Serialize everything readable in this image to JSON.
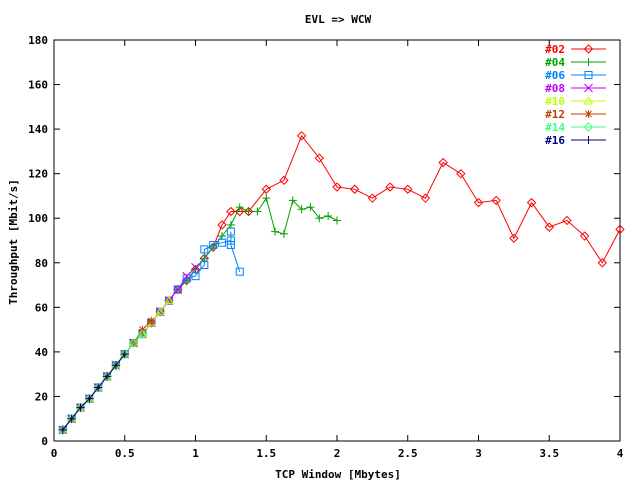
{
  "chart_data": {
    "type": "line",
    "title": "EVL => WCW",
    "xlabel": "TCP Window [Mbytes]",
    "ylabel": "Throughput [Mbit/s]",
    "xlim": [
      0,
      4
    ],
    "ylim": [
      0,
      180
    ],
    "xticks": [
      0,
      0.5,
      1,
      1.5,
      2,
      2.5,
      3,
      3.5,
      4
    ],
    "yticks": [
      0,
      20,
      40,
      60,
      80,
      100,
      120,
      140,
      160,
      180
    ],
    "xtick_labels": [
      "0",
      "0.5",
      "1",
      "1.5",
      "2",
      "2.5",
      "3",
      "3.5",
      "4"
    ],
    "ytick_labels": [
      "0",
      "20",
      "40",
      "60",
      "80",
      "100",
      "120",
      "140",
      "160",
      "180"
    ],
    "grid": false,
    "legend_position": "top-right",
    "series": [
      {
        "name": "#02",
        "color": "#ff0000",
        "marker": "diamond",
        "x": [
          0.0625,
          0.125,
          0.1875,
          0.25,
          0.3125,
          0.375,
          0.4375,
          0.5,
          0.5625,
          0.625,
          0.6875,
          0.75,
          0.8125,
          0.875,
          0.9375,
          1.0,
          1.0625,
          1.125,
          1.1875,
          1.25,
          1.3125,
          1.375,
          1.5,
          1.625,
          1.75,
          1.875,
          2.0,
          2.125,
          2.25,
          2.375,
          2.5,
          2.625,
          2.75,
          2.875,
          3.0,
          3.125,
          3.25,
          3.375,
          3.5,
          3.625,
          3.75,
          3.875,
          4.0
        ],
        "y": [
          5,
          10,
          15,
          19,
          24,
          29,
          34,
          39,
          44,
          48,
          53,
          58,
          63,
          68,
          72,
          77,
          82,
          87,
          97,
          103,
          103,
          103,
          113,
          117,
          137,
          127,
          114,
          113,
          109,
          114,
          113,
          109,
          125,
          120,
          107,
          108,
          91,
          107,
          96,
          99,
          92,
          80,
          95
        ]
      },
      {
        "name": "#04",
        "color": "#00a000",
        "marker": "plus",
        "x": [
          0.0625,
          0.125,
          0.1875,
          0.25,
          0.3125,
          0.375,
          0.4375,
          0.5,
          0.5625,
          0.625,
          0.6875,
          0.75,
          0.8125,
          0.875,
          0.9375,
          1.0,
          1.0625,
          1.125,
          1.1875,
          1.25,
          1.3125,
          1.375,
          1.4375,
          1.5,
          1.5625,
          1.625,
          1.6875,
          1.75,
          1.8125,
          1.875,
          1.9375,
          2.0
        ],
        "y": [
          5,
          10,
          15,
          19,
          24,
          29,
          34,
          39,
          44,
          48,
          53,
          58,
          63,
          68,
          72,
          77,
          82,
          87,
          92,
          97,
          105,
          103,
          103,
          109,
          94,
          93,
          108,
          104,
          105,
          100,
          101,
          99
        ]
      },
      {
        "name": "#06",
        "color": "#0080ff",
        "marker": "square",
        "x": [
          0.0625,
          0.125,
          0.1875,
          0.25,
          0.3125,
          0.375,
          0.4375,
          0.5,
          0.5625,
          0.625,
          0.6875,
          0.75,
          0.8125,
          0.875,
          0.9375,
          1.0,
          1.0625,
          1.0625,
          1.125,
          1.1875,
          1.25,
          1.25,
          1.25,
          1.3125
        ],
        "y": [
          5,
          10,
          15,
          19,
          24,
          29,
          34,
          39,
          44,
          48,
          53,
          58,
          63,
          68,
          73,
          74,
          79,
          86,
          88,
          89,
          90,
          94,
          88,
          76
        ]
      },
      {
        "name": "#08",
        "color": "#c000ff",
        "marker": "cross",
        "x": [
          0.0625,
          0.125,
          0.1875,
          0.25,
          0.3125,
          0.375,
          0.4375,
          0.5,
          0.5625,
          0.625,
          0.6875,
          0.75,
          0.8125,
          0.875,
          0.9375,
          1.0
        ],
        "y": [
          5,
          10,
          15,
          19,
          24,
          29,
          34,
          39,
          44,
          48,
          53,
          58,
          63,
          68,
          74,
          78
        ]
      },
      {
        "name": "#10",
        "color": "#c0ff00",
        "marker": "triangle",
        "x": [
          0.0625,
          0.125,
          0.1875,
          0.25,
          0.3125,
          0.375,
          0.4375,
          0.5,
          0.5625,
          0.625,
          0.6875,
          0.75,
          0.8125
        ],
        "y": [
          5,
          10,
          15,
          19,
          24,
          29,
          34,
          39,
          44,
          48,
          53,
          58,
          63
        ]
      },
      {
        "name": "#12",
        "color": "#c04000",
        "marker": "star",
        "x": [
          0.0625,
          0.125,
          0.1875,
          0.25,
          0.3125,
          0.375,
          0.4375,
          0.5,
          0.5625,
          0.625,
          0.6875
        ],
        "y": [
          5,
          10,
          15,
          19,
          24,
          29,
          34,
          39,
          44,
          50,
          54
        ]
      },
      {
        "name": "#14",
        "color": "#40ff80",
        "marker": "diamond",
        "x": [
          0.0625,
          0.125,
          0.1875,
          0.25,
          0.3125,
          0.375,
          0.4375,
          0.5,
          0.5625,
          0.625
        ],
        "y": [
          5,
          10,
          15,
          19,
          24,
          29,
          34,
          39,
          44,
          48
        ]
      },
      {
        "name": "#16",
        "color": "#000080",
        "marker": "plus",
        "x": [
          0.0625,
          0.125,
          0.1875,
          0.25,
          0.3125,
          0.375,
          0.4375,
          0.5
        ],
        "y": [
          5,
          10,
          15,
          19,
          24,
          29,
          34,
          39
        ]
      }
    ]
  }
}
